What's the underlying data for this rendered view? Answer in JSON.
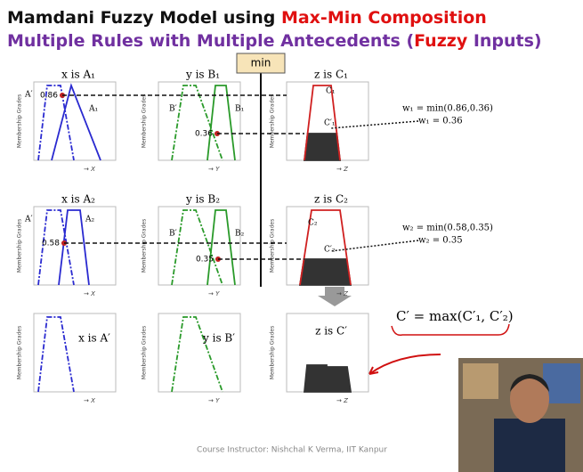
{
  "header": {
    "title": [
      "Mamdani Fuzzy Model using ",
      "Max-Min Composition"
    ],
    "subtitle": [
      "Multiple Rules with Multiple Antecedents (",
      "Fuzzy",
      " Inputs)"
    ]
  },
  "min_label": "min",
  "y_axis_label": "Membership Grades",
  "plots": [
    {
      "title": "x is A₁",
      "labels": [
        "A′",
        "A₁"
      ],
      "x_axis": "→ X"
    },
    {
      "title": "y is B₁",
      "labels": [
        "B′",
        "B₁"
      ],
      "x_axis": "→ Y"
    },
    {
      "title": "z is C₁",
      "labels": [
        "C₁",
        "C′₁"
      ],
      "x_axis": "→ Z"
    },
    {
      "title": "x is A₂",
      "labels": [
        "A′",
        "A₂"
      ],
      "x_axis": "→ X"
    },
    {
      "title": "y is B₂",
      "labels": [
        "B′",
        "B₂"
      ],
      "x_axis": "→ Y"
    },
    {
      "title": "z is C₂",
      "labels": [
        "C₂",
        "C′₂"
      ],
      "x_axis": "→ Z"
    },
    {
      "title": "x is A′",
      "labels": [],
      "x_axis": "→ X"
    },
    {
      "title": "y is B′",
      "labels": [],
      "x_axis": "→ Y"
    },
    {
      "title": "z is C′",
      "labels": [],
      "x_axis": "→ Z"
    }
  ],
  "levels": [
    [
      0.86,
      0.36
    ],
    [
      0.58,
      0.35
    ]
  ],
  "equations": [
    [
      "w₁ = min(0.86,0.36)",
      "w₁ = 0.36"
    ],
    [
      "w₂ = min(0.58,0.35)",
      "w₂ = 0.35"
    ]
  ],
  "aggregate": "C′ = max(C′₁, C′₂)",
  "footer": "Course Instructor: Nishchal K Verma, IIT Kanpur"
}
